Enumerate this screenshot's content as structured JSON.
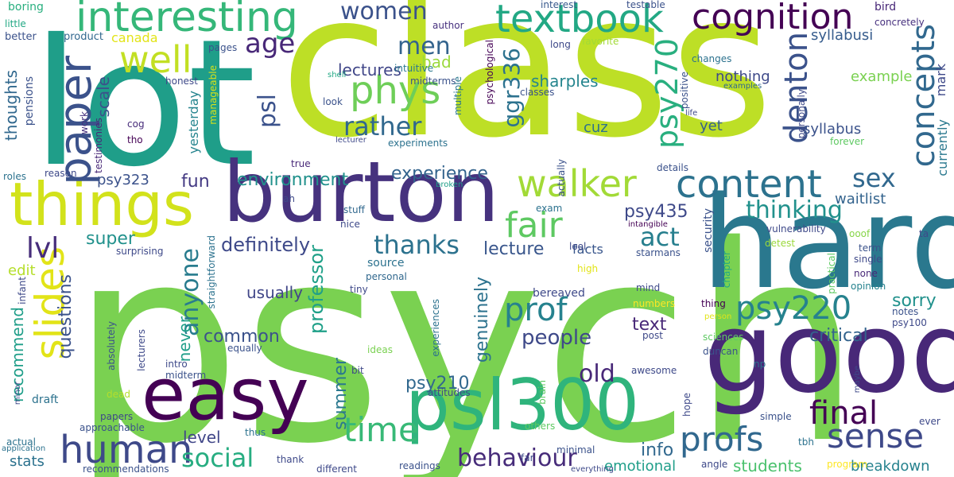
{
  "words": [
    {
      "text": "psych",
      "color": "#7ad151"
    },
    {
      "text": "class",
      "color": "#bddf26"
    },
    {
      "text": "lot",
      "color": "#1f9e89"
    },
    {
      "text": "hard",
      "color": "#2a788e"
    },
    {
      "text": "good",
      "color": "#482878"
    },
    {
      "text": "burton",
      "color": "#46327e"
    },
    {
      "text": "things",
      "color": "#d2e21b"
    },
    {
      "text": "easy",
      "color": "#440154"
    },
    {
      "text": "psl300",
      "color": "#2fb47c"
    },
    {
      "text": "interesting",
      "color": "#35b779"
    },
    {
      "text": "textbook",
      "color": "#22a884"
    },
    {
      "text": "cognition",
      "color": "#440154"
    },
    {
      "text": "paper",
      "color": "#3b528b"
    },
    {
      "text": "well",
      "color": "#c2df23"
    },
    {
      "text": "slides",
      "color": "#e2e418"
    },
    {
      "text": "phys",
      "color": "#6ece58"
    },
    {
      "text": "human",
      "color": "#3e4989"
    },
    {
      "text": "content",
      "color": "#2c728e"
    },
    {
      "text": "walker",
      "color": "#a2da37"
    },
    {
      "text": "fair",
      "color": "#5ec962"
    },
    {
      "text": "prof",
      "color": "#26828e"
    },
    {
      "text": "psy220",
      "color": "#26828e"
    },
    {
      "text": "profs",
      "color": "#31688e"
    },
    {
      "text": "sense",
      "color": "#3e4989"
    },
    {
      "text": "final",
      "color": "#440154"
    },
    {
      "text": "time",
      "color": "#38b977"
    },
    {
      "text": "denton",
      "color": "#3b528b"
    },
    {
      "text": "concepts",
      "color": "#31688e"
    },
    {
      "text": "psy270",
      "color": "#29af7f"
    },
    {
      "text": "rather",
      "color": "#31688e"
    },
    {
      "text": "behaviour",
      "color": "#472c7a"
    },
    {
      "text": "social",
      "color": "#27ad81"
    },
    {
      "text": "thinking",
      "color": "#21918c"
    },
    {
      "text": "age",
      "color": "#482878"
    },
    {
      "text": "women",
      "color": "#3b528b"
    },
    {
      "text": "men",
      "color": "#33638d"
    },
    {
      "text": "lvl",
      "color": "#472d7b"
    },
    {
      "text": "thanks",
      "color": "#2c728e"
    },
    {
      "text": "act",
      "color": "#277f8e"
    },
    {
      "text": "anyone",
      "color": "#287c8e"
    },
    {
      "text": "ggr336",
      "color": "#2c728e"
    },
    {
      "text": "sex",
      "color": "#31688e"
    },
    {
      "text": "definitely",
      "color": "#3e4989"
    },
    {
      "text": "environment",
      "color": "#21918c"
    },
    {
      "text": "experience",
      "color": "#33638d"
    },
    {
      "text": "lectures",
      "color": "#404688"
    },
    {
      "text": "sharples",
      "color": "#25858e"
    },
    {
      "text": "psl",
      "color": "#3b528b"
    },
    {
      "text": "old",
      "color": "#482878"
    },
    {
      "text": "people",
      "color": "#3e4989"
    },
    {
      "text": "questions",
      "color": "#3b528b"
    },
    {
      "text": "professor",
      "color": "#1fa088"
    },
    {
      "text": "lecture",
      "color": "#39568c"
    },
    {
      "text": "psy210",
      "color": "#31688e"
    },
    {
      "text": "genuinely",
      "color": "#2c728e"
    },
    {
      "text": "info",
      "color": "#31688e"
    },
    {
      "text": "summer",
      "color": "#2a788e"
    },
    {
      "text": "level",
      "color": "#404688"
    },
    {
      "text": "common",
      "color": "#3b528b"
    },
    {
      "text": "students",
      "color": "#4ac16d"
    },
    {
      "text": "critical",
      "color": "#33638d"
    },
    {
      "text": "sorry",
      "color": "#21918c"
    },
    {
      "text": "text",
      "color": "#482878"
    },
    {
      "text": "psy435",
      "color": "#3e4989"
    },
    {
      "text": "fun",
      "color": "#443a83"
    },
    {
      "text": "super",
      "color": "#21918c"
    },
    {
      "text": "edit",
      "color": "#b5de2b"
    },
    {
      "text": "recommend",
      "color": "#1f9e89"
    },
    {
      "text": "usually",
      "color": "#404688"
    },
    {
      "text": "never",
      "color": "#1f9e89"
    },
    {
      "text": "stats",
      "color": "#2c728e"
    },
    {
      "text": "breakdown",
      "color": "#26828e"
    },
    {
      "text": "emotional",
      "color": "#1f9e89"
    },
    {
      "text": "waitlist",
      "color": "#33638d"
    },
    {
      "text": "syllabus",
      "color": "#3b528b"
    },
    {
      "text": "syllabusi",
      "color": "#365c8d"
    },
    {
      "text": "yet",
      "color": "#355f8d"
    },
    {
      "text": "cuz",
      "color": "#2c728e"
    },
    {
      "text": "nothing",
      "color": "#3e4989"
    },
    {
      "text": "example",
      "color": "#7ad151"
    },
    {
      "text": "thoughts",
      "color": "#31688e"
    },
    {
      "text": "scale",
      "color": "#3b528b"
    },
    {
      "text": "psy323",
      "color": "#3b528b"
    },
    {
      "text": "yesterday",
      "color": "#25848e"
    },
    {
      "text": "bad",
      "color": "#9bd93c"
    },
    {
      "text": "canada",
      "color": "#e2e418"
    },
    {
      "text": "facts",
      "color": "#39568c"
    },
    {
      "text": "currently",
      "color": "#2a788e"
    },
    {
      "text": "mark",
      "color": "#3e4989"
    },
    {
      "text": "boring",
      "color": "#29af7f"
    },
    {
      "text": "little",
      "color": "#22a884"
    },
    {
      "text": "better",
      "color": "#3b528b"
    },
    {
      "text": "product",
      "color": "#31688e"
    },
    {
      "text": "author",
      "color": "#46307e"
    },
    {
      "text": "interest",
      "color": "#38598c"
    },
    {
      "text": "testable",
      "color": "#3b528b"
    },
    {
      "text": "bird",
      "color": "#482878"
    },
    {
      "text": "concretely",
      "color": "#46307e"
    },
    {
      "text": "pages",
      "color": "#3b528b"
    },
    {
      "text": "intuitive",
      "color": "#2a788e"
    },
    {
      "text": "midterms",
      "color": "#3b528b"
    },
    {
      "text": "multiple",
      "color": "#2a788e"
    },
    {
      "text": "psychological",
      "color": "#440154"
    },
    {
      "text": "classes",
      "color": "#3b528b"
    },
    {
      "text": "long",
      "color": "#3e4989"
    },
    {
      "text": "favorite",
      "color": "#a2da37"
    },
    {
      "text": "positive",
      "color": "#3b528b"
    },
    {
      "text": "changes",
      "color": "#2c728e"
    },
    {
      "text": "personally",
      "color": "#3e4989"
    },
    {
      "text": "examples",
      "color": "#31688e"
    },
    {
      "text": "honest",
      "color": "#3e4989"
    },
    {
      "text": "shell",
      "color": "#22a884"
    },
    {
      "text": "look",
      "color": "#3b528b"
    },
    {
      "text": "manageable",
      "color": "#d8e219"
    },
    {
      "text": "pensions",
      "color": "#3b528b"
    },
    {
      "text": "work",
      "color": "#46307e"
    },
    {
      "text": "testimonies",
      "color": "#482878"
    },
    {
      "text": "cog",
      "color": "#472c7a"
    },
    {
      "text": "tho",
      "color": "#440154"
    },
    {
      "text": "lecturer",
      "color": "#3e4989"
    },
    {
      "text": "experiments",
      "color": "#2c728e"
    },
    {
      "text": "life",
      "color": "#3e4989"
    },
    {
      "text": "forever",
      "color": "#5ec962"
    },
    {
      "text": "actually",
      "color": "#3b528b"
    },
    {
      "text": "roles",
      "color": "#2c728e"
    },
    {
      "text": "reason",
      "color": "#3e4989"
    },
    {
      "text": "true",
      "color": "#482878"
    },
    {
      "text": "details",
      "color": "#3b528b"
    },
    {
      "text": "broken",
      "color": "#1f9e89"
    },
    {
      "text": "ah",
      "color": "#3e4989"
    },
    {
      "text": "stuff",
      "color": "#31688e"
    },
    {
      "text": "nice",
      "color": "#3e4989"
    },
    {
      "text": "exam",
      "color": "#2c728e"
    },
    {
      "text": "intangible",
      "color": "#440154"
    },
    {
      "text": "security",
      "color": "#3b528b"
    },
    {
      "text": "vulnerability",
      "color": "#3e4989"
    },
    {
      "text": "detest",
      "color": "#9bd93c"
    },
    {
      "text": "ooof",
      "color": "#86d549"
    },
    {
      "text": "ta",
      "color": "#3e4989"
    },
    {
      "text": "term",
      "color": "#3b528b"
    },
    {
      "text": "source",
      "color": "#2c728e"
    },
    {
      "text": "personal",
      "color": "#31688e"
    },
    {
      "text": "surprising",
      "color": "#3e4989"
    },
    {
      "text": "straightforward",
      "color": "#2c728e"
    },
    {
      "text": "lool",
      "color": "#3e4989"
    },
    {
      "text": "starmans",
      "color": "#3b528b"
    },
    {
      "text": "single",
      "color": "#3e4989"
    },
    {
      "text": "none",
      "color": "#482878"
    },
    {
      "text": "opinion",
      "color": "#26828e"
    },
    {
      "text": "practical",
      "color": "#5ec962"
    },
    {
      "text": "high",
      "color": "#e2e418"
    },
    {
      "text": "mind",
      "color": "#3e4989"
    },
    {
      "text": "numbers",
      "color": "#fde725"
    },
    {
      "text": "chapter",
      "color": "#22a884"
    },
    {
      "text": "thing",
      "color": "#440154"
    },
    {
      "text": "person",
      "color": "#e2e418"
    },
    {
      "text": "notes",
      "color": "#3b528b"
    },
    {
      "text": "psy100",
      "color": "#3e4989"
    },
    {
      "text": "bereaved",
      "color": "#3e4989"
    },
    {
      "text": "infant",
      "color": "#3e4989"
    },
    {
      "text": "tiny",
      "color": "#3e4989"
    },
    {
      "text": "absolutely",
      "color": "#3b528b"
    },
    {
      "text": "lecturers",
      "color": "#3e4989"
    },
    {
      "text": "equally",
      "color": "#3b528b"
    },
    {
      "text": "post",
      "color": "#3e4989"
    },
    {
      "text": "sciences",
      "color": "#5ec962"
    },
    {
      "text": "duncan",
      "color": "#3b528b"
    },
    {
      "text": "np",
      "color": "#2c728e"
    },
    {
      "text": "awesome",
      "color": "#3e4989"
    },
    {
      "text": "intro",
      "color": "#3e4989"
    },
    {
      "text": "midterm",
      "color": "#3b528b"
    },
    {
      "text": "ideas",
      "color": "#7ad151"
    },
    {
      "text": "experiences",
      "color": "#2c728e"
    },
    {
      "text": "brain",
      "color": "#5ec962"
    },
    {
      "text": "bit",
      "color": "#3e4989"
    },
    {
      "text": "attitudes",
      "color": "#3e4989"
    },
    {
      "text": "dead",
      "color": "#b5de2b"
    },
    {
      "text": "draft",
      "color": "#2c728e"
    },
    {
      "text": "minor",
      "color": "#3e4989"
    },
    {
      "text": "papers",
      "color": "#3e4989"
    },
    {
      "text": "approachable",
      "color": "#3b528b"
    },
    {
      "text": "thus",
      "color": "#2c728e"
    },
    {
      "text": "actual",
      "color": "#2c728e"
    },
    {
      "text": "application",
      "color": "#2c728e"
    },
    {
      "text": "thank",
      "color": "#3e4989"
    },
    {
      "text": "others",
      "color": "#5ec962"
    },
    {
      "text": "far",
      "color": "#3e4989"
    },
    {
      "text": "minimal",
      "color": "#3b528b"
    },
    {
      "text": "everything",
      "color": "#3e4989"
    },
    {
      "text": "hope",
      "color": "#3e4989"
    },
    {
      "text": "simple",
      "color": "#3b528b"
    },
    {
      "text": "ever",
      "color": "#3e4989"
    },
    {
      "text": "tbh",
      "color": "#2c728e"
    },
    {
      "text": "maybe",
      "color": "#3e4989"
    },
    {
      "text": "recommendations",
      "color": "#3b528b"
    },
    {
      "text": "different",
      "color": "#3e4989"
    },
    {
      "text": "readings",
      "color": "#3b528b"
    },
    {
      "text": "angle",
      "color": "#3e4989"
    },
    {
      "text": "program",
      "color": "#fde725"
    }
  ]
}
